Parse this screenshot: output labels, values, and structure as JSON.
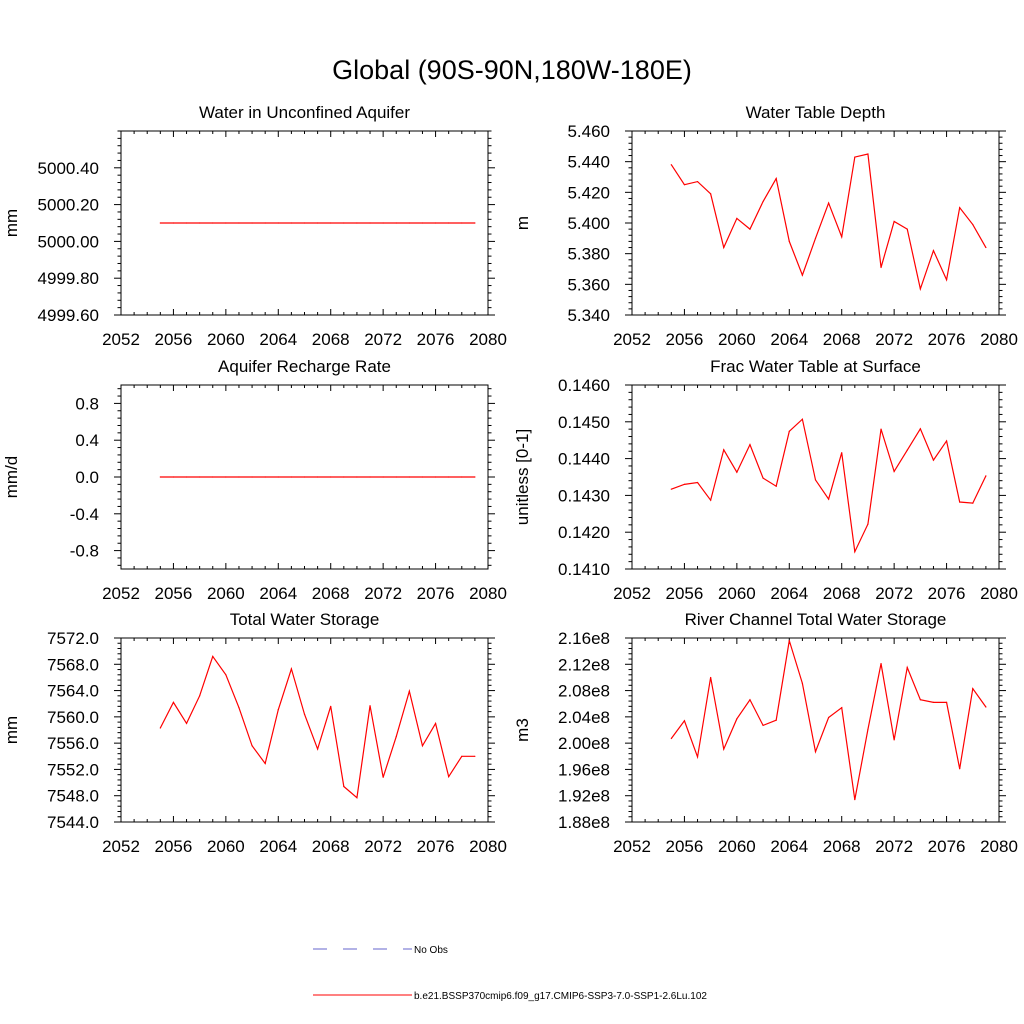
{
  "title": "Global (90S-90N,180W-180E)",
  "colors": {
    "model": "#ff0000",
    "obs": "#6666cc"
  },
  "legend": [
    {
      "label": "No Obs",
      "style": "dashed",
      "color": "#6666cc"
    },
    {
      "label": "b.e21.BSSP370cmip6.f09_g17.CMIP6-SSP3-7.0-SSP1-2.6Lu.102",
      "style": "solid",
      "color": "#ff0000"
    }
  ],
  "chart_data": [
    {
      "type": "line",
      "title": "Water in Unconfined Aquifer",
      "ylabel": "mm",
      "xlim": [
        2052,
        2080
      ],
      "ylim": [
        4999.6,
        5000.6
      ],
      "xticks": [
        "2052",
        "2056",
        "2060",
        "2064",
        "2068",
        "2072",
        "2076",
        "2080"
      ],
      "yticks": [
        "4999.60",
        "4999.80",
        "5000.00",
        "5000.20",
        "5000.40"
      ],
      "x": [
        2055,
        2056,
        2057,
        2058,
        2059,
        2060,
        2061,
        2062,
        2063,
        2064,
        2065,
        2066,
        2067,
        2068,
        2069,
        2070,
        2071,
        2072,
        2073,
        2074,
        2075,
        2076,
        2077,
        2078,
        2079
      ],
      "series": [
        {
          "values": [
            5000.1,
            5000.1,
            5000.1,
            5000.1,
            5000.1,
            5000.1,
            5000.1,
            5000.1,
            5000.1,
            5000.1,
            5000.1,
            5000.1,
            5000.1,
            5000.1,
            5000.1,
            5000.1,
            5000.1,
            5000.1,
            5000.1,
            5000.1,
            5000.1,
            5000.1,
            5000.1,
            5000.1,
            5000.1
          ]
        }
      ]
    },
    {
      "type": "line",
      "title": "Water Table Depth",
      "ylabel": "m",
      "xlim": [
        2052,
        2080
      ],
      "ylim": [
        5.34,
        5.46
      ],
      "xticks": [
        "2052",
        "2056",
        "2060",
        "2064",
        "2068",
        "2072",
        "2076",
        "2080"
      ],
      "yticks": [
        "5.340",
        "5.360",
        "5.380",
        "5.400",
        "5.420",
        "5.440",
        "5.460"
      ],
      "x": [
        2055,
        2056,
        2057,
        2058,
        2059,
        2060,
        2061,
        2062,
        2063,
        2064,
        2065,
        2066,
        2067,
        2068,
        2069,
        2070,
        2071,
        2072,
        2073,
        2074,
        2075,
        2076,
        2077,
        2078,
        2079
      ],
      "series": [
        {
          "values": [
            5.438,
            5.425,
            5.427,
            5.419,
            5.384,
            5.403,
            5.396,
            5.414,
            5.429,
            5.388,
            5.366,
            5.39,
            5.413,
            5.391,
            5.443,
            5.445,
            5.371,
            5.401,
            5.396,
            5.357,
            5.382,
            5.363,
            5.41,
            5.399,
            5.384
          ]
        }
      ]
    },
    {
      "type": "line",
      "title": "Aquifer Recharge Rate",
      "ylabel": "mm/d",
      "xlim": [
        2052,
        2080
      ],
      "ylim": [
        -1.0,
        1.0
      ],
      "xticks": [
        "2052",
        "2056",
        "2060",
        "2064",
        "2068",
        "2072",
        "2076",
        "2080"
      ],
      "yticks": [
        "-0.8",
        "-0.4",
        "0.0",
        "0.4",
        "0.8"
      ],
      "x": [
        2055,
        2056,
        2057,
        2058,
        2059,
        2060,
        2061,
        2062,
        2063,
        2064,
        2065,
        2066,
        2067,
        2068,
        2069,
        2070,
        2071,
        2072,
        2073,
        2074,
        2075,
        2076,
        2077,
        2078,
        2079
      ],
      "series": [
        {
          "values": [
            0,
            0,
            0,
            0,
            0,
            0,
            0,
            0,
            0,
            0,
            0,
            0,
            0,
            0,
            0,
            0,
            0,
            0,
            0,
            0,
            0,
            0,
            0,
            0,
            0
          ]
        }
      ]
    },
    {
      "type": "line",
      "title": "Frac Water Table at Surface",
      "ylabel": "unitless [0-1]",
      "xlim": [
        2052,
        2080
      ],
      "ylim": [
        0.141,
        0.146
      ],
      "xticks": [
        "2052",
        "2056",
        "2060",
        "2064",
        "2068",
        "2072",
        "2076",
        "2080"
      ],
      "yticks": [
        "0.1410",
        "0.1420",
        "0.1430",
        "0.1440",
        "0.1450",
        "0.1460"
      ],
      "x": [
        2055,
        2056,
        2057,
        2058,
        2059,
        2060,
        2061,
        2062,
        2063,
        2064,
        2065,
        2066,
        2067,
        2068,
        2069,
        2070,
        2071,
        2072,
        2073,
        2074,
        2075,
        2076,
        2077,
        2078,
        2079
      ],
      "series": [
        {
          "values": [
            0.14317,
            0.1433,
            0.14335,
            0.14287,
            0.14424,
            0.14363,
            0.14438,
            0.14347,
            0.14325,
            0.14474,
            0.14507,
            0.14342,
            0.1429,
            0.14416,
            0.14147,
            0.14222,
            0.1448,
            0.14365,
            0.14423,
            0.14481,
            0.14396,
            0.14448,
            0.14282,
            0.14279,
            0.14353
          ]
        }
      ]
    },
    {
      "type": "line",
      "title": "Total Water Storage",
      "ylabel": "mm",
      "xlim": [
        2052,
        2080
      ],
      "ylim": [
        7544.0,
        7572.0
      ],
      "xticks": [
        "2052",
        "2056",
        "2060",
        "2064",
        "2068",
        "2072",
        "2076",
        "2080"
      ],
      "yticks": [
        "7544.0",
        "7548.0",
        "7552.0",
        "7556.0",
        "7560.0",
        "7564.0",
        "7568.0",
        "7572.0"
      ],
      "x": [
        2055,
        2056,
        2057,
        2058,
        2059,
        2060,
        2061,
        2062,
        2063,
        2064,
        2065,
        2066,
        2067,
        2068,
        2069,
        2070,
        2071,
        2072,
        2073,
        2074,
        2075,
        2076,
        2077,
        2078,
        2079
      ],
      "series": [
        {
          "values": [
            7558.3,
            7562.2,
            7559.0,
            7563.2,
            7569.2,
            7566.4,
            7561.4,
            7555.6,
            7552.9,
            7561.1,
            7567.3,
            7560.4,
            7555.1,
            7561.6,
            7549.4,
            7547.7,
            7561.7,
            7550.8,
            7557.0,
            7563.9,
            7555.6,
            7559.0,
            7550.9,
            7554.0,
            7554.0
          ]
        }
      ]
    },
    {
      "type": "line",
      "title": "River Channel Total Water Storage",
      "ylabel": "m3",
      "xlim": [
        2052,
        2080
      ],
      "ylim": [
        188000000.0,
        216000000.0
      ],
      "xticks": [
        "2052",
        "2056",
        "2060",
        "2064",
        "2068",
        "2072",
        "2076",
        "2080"
      ],
      "yticks": [
        "1.88e8",
        "1.92e8",
        "1.96e8",
        "2.00e8",
        "2.04e8",
        "2.08e8",
        "2.12e8",
        "2.16e8"
      ],
      "x": [
        2055,
        2056,
        2057,
        2058,
        2059,
        2060,
        2061,
        2062,
        2063,
        2064,
        2065,
        2066,
        2067,
        2068,
        2069,
        2070,
        2071,
        2072,
        2073,
        2074,
        2075,
        2076,
        2077,
        2078,
        2079
      ],
      "series": [
        {
          "values": [
            200700000.0,
            203400000.0,
            197900000.0,
            210000000.0,
            199100000.0,
            203700000.0,
            206600000.0,
            202700000.0,
            203500000.0,
            215600000.0,
            209100000.0,
            198700000.0,
            203900000.0,
            205400000.0,
            191400000.0,
            202100000.0,
            212100000.0,
            200500000.0,
            211500000.0,
            206600000.0,
            206200000.0,
            206200000.0,
            196100000.0,
            208300000.0,
            205500000.0
          ]
        }
      ]
    }
  ]
}
